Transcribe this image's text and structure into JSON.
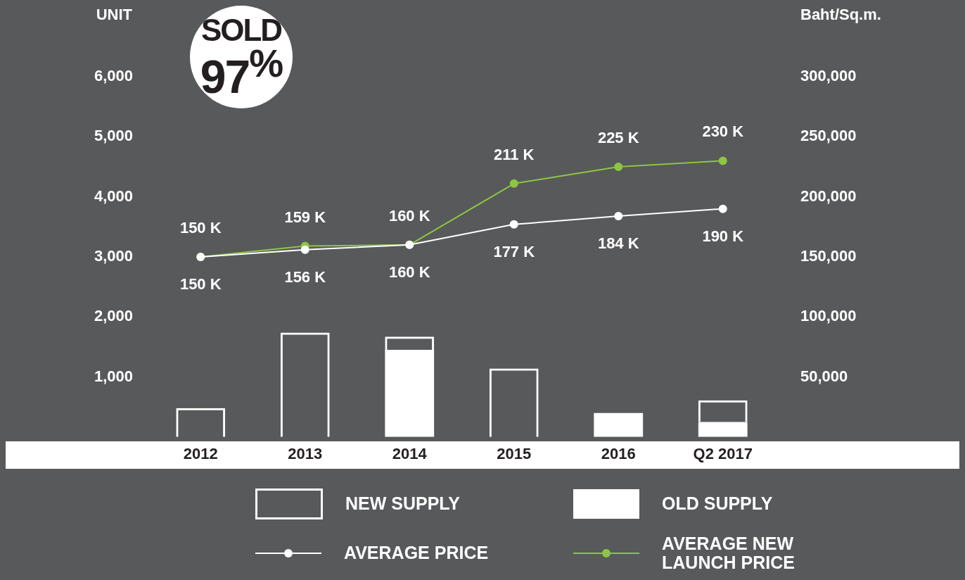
{
  "chart_data": {
    "type": "bar",
    "categories": [
      "2012",
      "2013",
      "2014",
      "2015",
      "2016",
      "Q2 2017"
    ],
    "stacked": true,
    "ylabel": "UNIT",
    "y2label": "Baht/Sq.m.",
    "ylim": [
      0,
      6000
    ],
    "yticks": [
      {
        "value": 1000,
        "label": "1,000"
      },
      {
        "value": 2000,
        "label": "2,000"
      },
      {
        "value": 3000,
        "label": "3,000"
      },
      {
        "value": 4000,
        "label": "4,000"
      },
      {
        "value": 5000,
        "label": "5,000"
      },
      {
        "value": 6000,
        "label": "6,000"
      }
    ],
    "y2lim": [
      0,
      300000
    ],
    "y2ticks": [
      {
        "value": 50000,
        "label": "50,000"
      },
      {
        "value": 100000,
        "label": "100,000"
      },
      {
        "value": 150000,
        "label": "150,000"
      },
      {
        "value": 200000,
        "label": "200,000"
      },
      {
        "value": 250000,
        "label": "250,000"
      },
      {
        "value": 300000,
        "label": "300,000"
      }
    ],
    "series": [
      {
        "name": "OLD SUPPLY",
        "color": "#ffffff",
        "values": [
          0,
          0,
          1450,
          0,
          400,
          250
        ]
      },
      {
        "name": "NEW SUPPLY",
        "color": "#ffffff",
        "values": [
          480,
          1740,
          220,
          1140,
          0,
          360
        ]
      },
      {
        "name": "AVERAGE PRICE",
        "type": "line",
        "axis": "y2",
        "color": "#ffffff",
        "values": [
          150000,
          156000,
          160000,
          177000,
          184000,
          190000
        ],
        "value_labels": [
          "150 K",
          "156 K",
          "160 K",
          "177 K",
          "184 K",
          "190 K"
        ]
      },
      {
        "name": "AVERAGE NEW LAUNCH PRICE",
        "type": "line",
        "axis": "y2",
        "color": "#8dc63f",
        "values": [
          150000,
          159000,
          160000,
          211000,
          225000,
          230000
        ],
        "value_labels": [
          "150 K",
          "159 K",
          "160 K",
          "211 K",
          "225 K",
          "230 K"
        ]
      }
    ],
    "marker": "circle",
    "grid": false,
    "legend": "bottom",
    "annotations": [
      "SOLD",
      "97$^{%}$"
    ]
  }
}
